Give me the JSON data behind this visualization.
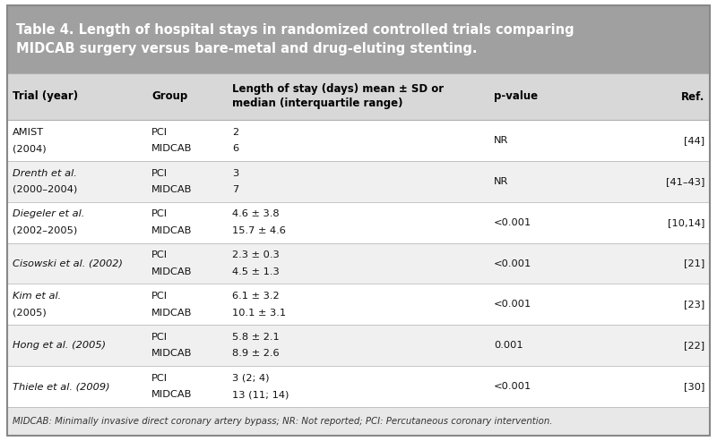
{
  "title": "Table 4. Length of hospital stays in randomized controlled trials comparing\nMIDCAB surgery versus bare-metal and drug-eluting stenting.",
  "header": [
    "Trial (year)",
    "Group",
    "Length of stay (days) mean ± SD or\nmedian (interquartile range)",
    "p-value",
    "Ref."
  ],
  "rows": [
    {
      "trial": [
        "AMIST",
        "(2004)"
      ],
      "trial_italic": [
        false,
        false
      ],
      "group": [
        "PCI",
        "MIDCAB"
      ],
      "stay": [
        "2",
        "6"
      ],
      "pvalue": "NR",
      "ref": "[44]",
      "pvalue_row": 0
    },
    {
      "trial": [
        "Drenth et al.",
        "(2000–2004)"
      ],
      "trial_italic": [
        true,
        false
      ],
      "group": [
        "PCI",
        "MIDCAB"
      ],
      "stay": [
        "3",
        "7"
      ],
      "pvalue": "NR",
      "ref": "[41–43]",
      "pvalue_row": 0
    },
    {
      "trial": [
        "Diegeler et al.",
        "(2002–2005)"
      ],
      "trial_italic": [
        true,
        false
      ],
      "group": [
        "PCI",
        "MIDCAB"
      ],
      "stay": [
        "4.6 ± 3.8",
        "15.7 ± 4.6"
      ],
      "pvalue": "<0.001",
      "ref": "[10,14]",
      "pvalue_row": 0
    },
    {
      "trial": [
        "Cisowski et al. (2002)",
        ""
      ],
      "trial_italic": [
        true,
        false
      ],
      "group": [
        "PCI",
        "MIDCAB"
      ],
      "stay": [
        "2.3 ± 0.3",
        "4.5 ± 1.3"
      ],
      "pvalue": "<0.001",
      "ref": "[21]",
      "pvalue_row": 0
    },
    {
      "trial": [
        "Kim et al.",
        "(2005)"
      ],
      "trial_italic": [
        true,
        false
      ],
      "group": [
        "PCI",
        "MIDCAB"
      ],
      "stay": [
        "6.1 ± 3.2",
        "10.1 ± 3.1"
      ],
      "pvalue": "<0.001",
      "ref": "[23]",
      "pvalue_row": 0
    },
    {
      "trial": [
        "Hong et al. (2005)",
        ""
      ],
      "trial_italic": [
        true,
        false
      ],
      "group": [
        "PCI",
        "MIDCAB"
      ],
      "stay": [
        "5.8 ± 2.1",
        "8.9 ± 2.6"
      ],
      "pvalue": "0.001",
      "ref": "[22]",
      "pvalue_row": 0
    },
    {
      "trial": [
        "Thiele et al. (2009)",
        ""
      ],
      "trial_italic": [
        true,
        false
      ],
      "group": [
        "PCI",
        "MIDCAB"
      ],
      "stay": [
        "3 (2; 4)",
        "13 (11; 14)"
      ],
      "pvalue": "<0.001",
      "ref": "[30]",
      "pvalue_row": 0
    }
  ],
  "footer": "MIDCAB: Minimally invasive direct coronary artery bypass; NR: Not reported; PCI: Percutaneous coronary intervention.",
  "title_bg": "#a0a0a0",
  "title_fg": "#ffffff",
  "header_bg": "#d8d8d8",
  "header_fg": "#000000",
  "row_bg_even": "#ffffff",
  "row_bg_odd": "#f0f0f0",
  "footer_bg": "#e8e8e8",
  "border_color": "#b0b0b0",
  "fig_bg": "#ffffff",
  "outer_border": "#888888"
}
